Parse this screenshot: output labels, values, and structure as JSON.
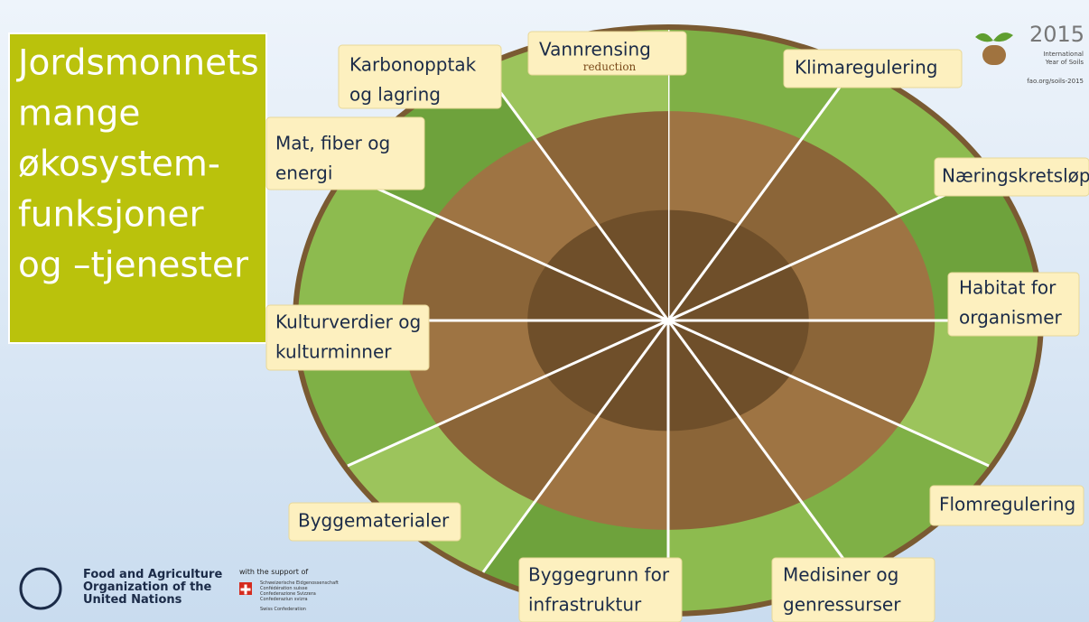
{
  "title": {
    "lines": [
      "Jordsmonnets",
      "mange",
      "økosystem-",
      "funksjoner",
      "og –tjenester"
    ]
  },
  "labels": [
    {
      "lines": [
        "Vannrensing"
      ],
      "sub": "reduction"
    },
    {
      "lines": [
        "Karbonopptak",
        "og lagring"
      ]
    },
    {
      "lines": [
        "Klimaregulering"
      ]
    },
    {
      "lines": [
        "Mat, fiber og",
        "energi"
      ]
    },
    {
      "lines": [
        "Næringskretsløp"
      ]
    },
    {
      "lines": [
        "Habitat for",
        "organismer"
      ]
    },
    {
      "lines": [
        "Kulturverdier og",
        "kulturminner"
      ]
    },
    {
      "lines": [
        "Byggematerialer"
      ]
    },
    {
      "lines": [
        "Byggegrunn for",
        "infrastruktur"
      ]
    },
    {
      "lines": [
        "Medisiner og",
        "genressurser"
      ]
    },
    {
      "lines": [
        "Flomregulering"
      ]
    }
  ],
  "logo": {
    "year": "2015",
    "lines": [
      "International",
      "Year of Soils"
    ],
    "url": "fao.org/soils-2015"
  },
  "fao": {
    "lines": [
      "Food and Agriculture",
      "Organization of the",
      "United Nations"
    ]
  },
  "support": {
    "heading": "with the support of",
    "lines": [
      "Schweizerische Eidgenossenschaft",
      "Confédération suisse",
      "Confederazione Svizzera",
      "Confederaziun svizra"
    ],
    "footer": "Swiss Confederation"
  }
}
